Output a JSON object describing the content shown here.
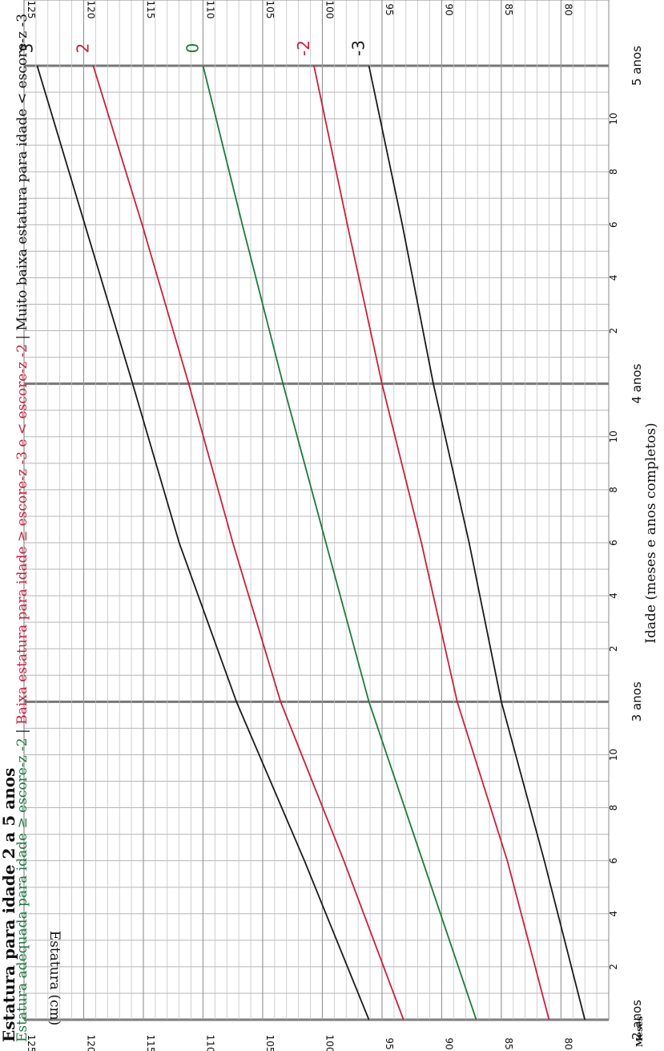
{
  "chart_data": {
    "type": "line",
    "title": "Estatura para idade 2 a 5 anos",
    "legend": {
      "adequate": "Estatura adequada para idade ≥ escore-z -2",
      "sep1": " | ",
      "low": "Baixa estatura para idade ≥ escore-z -3 e < escore-z -2",
      "sep2": " | ",
      "very_low": "Muito baixa estatura para idade < escore-z -3"
    },
    "xlabel": "Idade (meses e anos completos)",
    "ylabel": "Estatura (cm)",
    "corner_label": "Meses",
    "x_unit": "months",
    "xlim": [
      24,
      60
    ],
    "ylim": [
      76,
      125
    ],
    "year_labels": [
      {
        "month": 24,
        "label": "2 anos"
      },
      {
        "month": 36,
        "label": "3 anos"
      },
      {
        "month": 48,
        "label": "4 anos"
      },
      {
        "month": 60,
        "label": "5 anos"
      }
    ],
    "month_tick_labels": [
      {
        "month": 26,
        "label": "2"
      },
      {
        "month": 28,
        "label": "4"
      },
      {
        "month": 30,
        "label": "6"
      },
      {
        "month": 32,
        "label": "8"
      },
      {
        "month": 34,
        "label": "10"
      },
      {
        "month": 38,
        "label": "2"
      },
      {
        "month": 40,
        "label": "4"
      },
      {
        "month": 42,
        "label": "6"
      },
      {
        "month": 44,
        "label": "8"
      },
      {
        "month": 46,
        "label": "10"
      },
      {
        "month": 50,
        "label": "2"
      },
      {
        "month": 52,
        "label": "4"
      },
      {
        "month": 54,
        "label": "6"
      },
      {
        "month": 56,
        "label": "8"
      },
      {
        "month": 58,
        "label": "10"
      }
    ],
    "y_ticks": [
      80,
      85,
      90,
      95,
      100,
      105,
      110,
      115,
      120,
      125
    ],
    "y_tick_labels": [
      "80",
      "85",
      "90",
      "95",
      "100",
      "105",
      "110",
      "115",
      "120",
      "125"
    ],
    "grid": true,
    "x": [
      24,
      30,
      36,
      42,
      48,
      54,
      60
    ],
    "series": [
      {
        "name": "3",
        "color": "#1a1a1a",
        "values": [
          96.1,
          101.5,
          107.2,
          112.0,
          115.9,
          119.9,
          123.9
        ]
      },
      {
        "name": "2",
        "color": "#c8203c",
        "values": [
          93.2,
          98.2,
          103.5,
          107.5,
          111.2,
          115.1,
          119.2
        ]
      },
      {
        "name": "0",
        "color": "#1b7a3e",
        "values": [
          87.1,
          91.6,
          96.1,
          99.7,
          103.3,
          106.7,
          110.0
        ]
      },
      {
        "name": "-2",
        "color": "#c8203c",
        "values": [
          81.0,
          84.5,
          88.7,
          91.7,
          95.0,
          97.9,
          100.7
        ]
      },
      {
        "name": "-3",
        "color": "#1a1a1a",
        "values": [
          78.0,
          81.4,
          85.0,
          87.7,
          90.7,
          93.3,
          96.1
        ]
      }
    ]
  }
}
